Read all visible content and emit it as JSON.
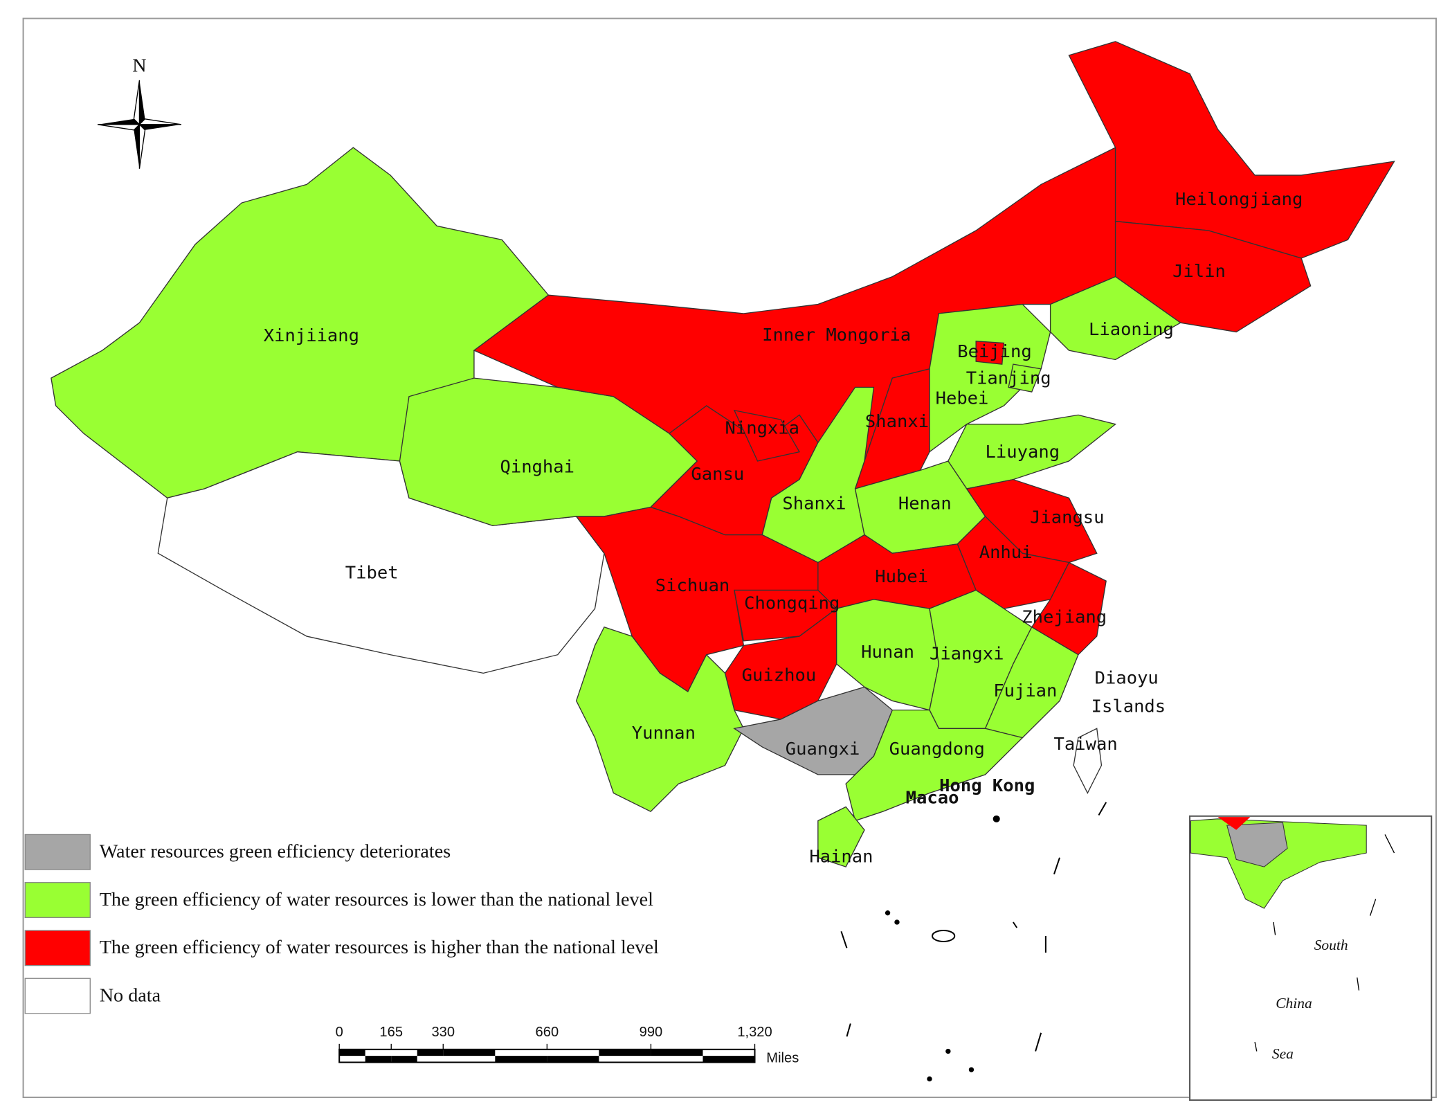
{
  "compass": {
    "label": "N"
  },
  "regions": [
    {
      "label": "Xinjiiang",
      "color": "#99ff33"
    },
    {
      "label": "Tibet",
      "color": "#ffffff"
    },
    {
      "label": "Qinghai",
      "color": "#99ff33"
    },
    {
      "label": "Inner Mongoria",
      "color": "#ff0000"
    },
    {
      "label": "Heilongjiang",
      "color": "#ff0000"
    },
    {
      "label": "Jilin",
      "color": "#ff0000"
    },
    {
      "label": "Liaoning",
      "color": "#99ff33"
    },
    {
      "label": "Hebei",
      "color": "#99ff33"
    },
    {
      "label": "Beijing",
      "color": "#ff0000"
    },
    {
      "label": "Tianjing",
      "color": "#99ff33"
    },
    {
      "label": "Shanxi",
      "color": "#ff0000"
    },
    {
      "label": "Liuyang",
      "color": "#99ff33"
    },
    {
      "label": "Gansu",
      "color": "#ff0000"
    },
    {
      "label": "Ningxia",
      "color": "#ff0000"
    },
    {
      "label": "Shanxi",
      "color": "#99ff33"
    },
    {
      "label": "Henan",
      "color": "#99ff33"
    },
    {
      "label": "Jiangsu",
      "color": "#ff0000"
    },
    {
      "label": "Anhui",
      "color": "#ff0000"
    },
    {
      "label": "Zhejiang",
      "color": "#ff0000"
    },
    {
      "label": "Hubei",
      "color": "#ff0000"
    },
    {
      "label": "Sichuan",
      "color": "#ff0000"
    },
    {
      "label": "Chongqing",
      "color": "#ff0000"
    },
    {
      "label": "Guizhou",
      "color": "#ff0000"
    },
    {
      "label": "Hunan",
      "color": "#99ff33"
    },
    {
      "label": "Jiangxi",
      "color": "#99ff33"
    },
    {
      "label": "Fujian",
      "color": "#99ff33"
    },
    {
      "label": "Yunnan",
      "color": "#99ff33"
    },
    {
      "label": "Guangxi",
      "color": "#a6a6a6"
    },
    {
      "label": "Guangdong",
      "color": "#99ff33"
    },
    {
      "label": "Hainan",
      "color": "#99ff33"
    },
    {
      "label": "Taiwan",
      "color": "#ffffff"
    }
  ],
  "places": [
    "Hong Kong",
    "Macao",
    "Diaoyu",
    "Islands"
  ],
  "legend": [
    {
      "label": "Water resources green efficiency deteriorates",
      "color": "#a6a6a6"
    },
    {
      "label": "The green efficiency of water resources is lower than the national level",
      "color": "#99ff33"
    },
    {
      "label": "The green efficiency of water resources is higher than the national level",
      "color": "#ff0000"
    },
    {
      "label": "No data",
      "color": "#ffffff"
    }
  ],
  "scale_bar": {
    "ticks": [
      0,
      165,
      330,
      660,
      990,
      {
        "value": 1320,
        "label": "1,320"
      }
    ],
    "unit": "Miles"
  },
  "inset": {
    "label_lines": [
      "South",
      "China",
      "Sea"
    ]
  }
}
